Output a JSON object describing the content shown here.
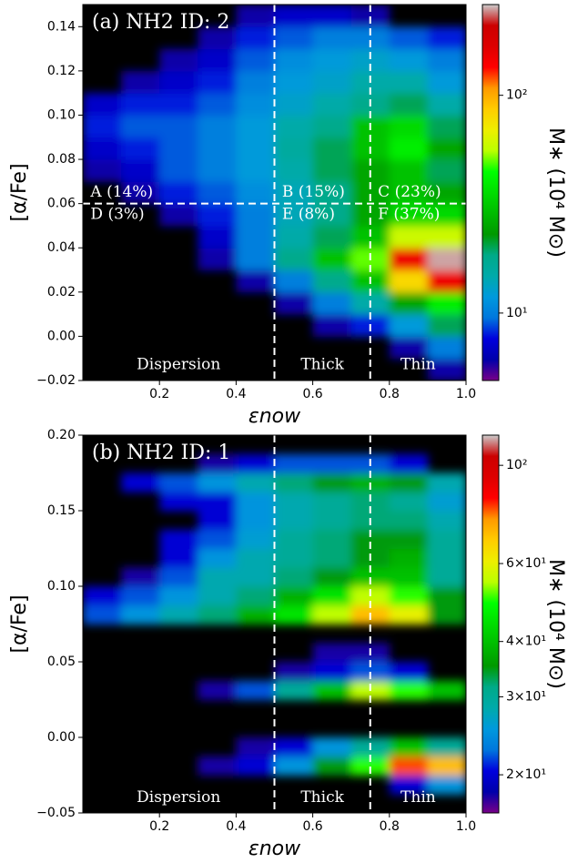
{
  "chart_data": [
    {
      "type": "heatmap",
      "title": "(a) NH2 ID: 2",
      "xlabel": "εnow",
      "ylabel": "[α/Fe]",
      "colorbar_label": "M∗ (10⁴ M⊙)",
      "background": "#000000",
      "log_color": true,
      "colormap": [
        "#780088",
        "#0000aa",
        "#0000dd",
        "#0077dd",
        "#0099dd",
        "#00aaaa",
        "#00aa88",
        "#009900",
        "#00bb00",
        "#00dd00",
        "#00ff00",
        "#bbff00",
        "#eeee00",
        "#ffcc00",
        "#ff9900",
        "#ff0000",
        "#dd0000",
        "#cc0000",
        "#cccccc"
      ],
      "clim": [
        4.9,
        261
      ],
      "cticks": [
        {
          "value": 10,
          "label": "10¹"
        },
        {
          "value": 100,
          "label": "10²"
        }
      ],
      "xlim": [
        0,
        1
      ],
      "ylim": [
        -0.02,
        0.15
      ],
      "xticks": [
        0.2,
        0.4,
        0.6,
        0.8,
        {
          "value": 1,
          "label": "1.0"
        }
      ],
      "yticks": [
        {
          "value": -0.02,
          "label": "−0.02"
        },
        {
          "value": 0,
          "label": "0.00"
        },
        0.02,
        0.04,
        0.06,
        0.08,
        {
          "value": 0.1,
          "label": "0.10"
        },
        0.12,
        0.14
      ],
      "xbins": [
        0,
        0.1,
        0.2,
        0.3,
        0.4,
        0.5,
        0.6,
        0.7,
        0.8,
        0.9,
        1.0
      ],
      "ybins": [
        -0.02,
        -0.01,
        0,
        0.01,
        0.02,
        0.03,
        0.04,
        0.05,
        0.06,
        0.07,
        0.08,
        0.09,
        0.1,
        0.11,
        0.12,
        0.13,
        0.14,
        0.15
      ],
      "z": [
        [
          null,
          null,
          null,
          null,
          null,
          null,
          null,
          null,
          null,
          6
        ],
        [
          null,
          null,
          null,
          null,
          null,
          null,
          null,
          null,
          6,
          10
        ],
        [
          null,
          null,
          null,
          null,
          null,
          null,
          6,
          8,
          12,
          20
        ],
        [
          null,
          null,
          null,
          null,
          null,
          6,
          10,
          15,
          25,
          40
        ],
        [
          null,
          null,
          null,
          null,
          6,
          10,
          18,
          30,
          80,
          150
        ],
        [
          null,
          null,
          null,
          6,
          10,
          18,
          30,
          50,
          150,
          250
        ],
        [
          null,
          null,
          null,
          7,
          10,
          15,
          20,
          30,
          60,
          60
        ],
        [
          null,
          null,
          6,
          8,
          10,
          14,
          18,
          25,
          35,
          35
        ],
        [
          null,
          6,
          8,
          9,
          11,
          14,
          18,
          25,
          30,
          25
        ],
        [
          6,
          7,
          9,
          10,
          12,
          15,
          20,
          25,
          30,
          20
        ],
        [
          7,
          8,
          9,
          10,
          12,
          16,
          20,
          30,
          40,
          25
        ],
        [
          8,
          9,
          9,
          10,
          12,
          15,
          18,
          30,
          35,
          20
        ],
        [
          7,
          8,
          8,
          9,
          11,
          13,
          15,
          18,
          20,
          15
        ],
        [
          null,
          6,
          7,
          8,
          10,
          12,
          13,
          15,
          15,
          12
        ],
        [
          null,
          null,
          6,
          7,
          9,
          11,
          12,
          13,
          12,
          10
        ],
        [
          null,
          null,
          null,
          6,
          8,
          9,
          10,
          10,
          9,
          8
        ],
        [
          null,
          null,
          null,
          null,
          6,
          7,
          7,
          6,
          null,
          null
        ]
      ],
      "vlines": [
        0.5,
        0.75
      ],
      "hlines": [
        0.06
      ],
      "annotations": [
        {
          "text": "A (14%)",
          "x": 0.02,
          "y": 0.065
        },
        {
          "text": "B (15%)",
          "x": 0.52,
          "y": 0.065
        },
        {
          "text": "C (23%)",
          "x": 0.77,
          "y": 0.065
        },
        {
          "text": "D (3%)",
          "x": 0.02,
          "y": 0.055
        },
        {
          "text": "E (8%)",
          "x": 0.52,
          "y": 0.055
        },
        {
          "text": "F (37%)",
          "x": 0.77,
          "y": 0.055
        },
        {
          "text": "Dispersion",
          "x": 0.25,
          "y": -0.013
        },
        {
          "text": "Thick",
          "x": 0.625,
          "y": -0.013
        },
        {
          "text": "Thin",
          "x": 0.875,
          "y": -0.013
        }
      ]
    },
    {
      "type": "heatmap",
      "title": "(b) NH2 ID: 1",
      "xlabel": "εnow",
      "ylabel": "[α/Fe]",
      "colorbar_label": "M∗ (10⁴ M⊙)",
      "background": "#000000",
      "log_color": true,
      "colormap": [
        "#780088",
        "#0000aa",
        "#0000dd",
        "#0077dd",
        "#0099dd",
        "#00aaaa",
        "#00aa88",
        "#009900",
        "#00bb00",
        "#00dd00",
        "#00ff00",
        "#bbff00",
        "#eeee00",
        "#ffcc00",
        "#ff9900",
        "#ff0000",
        "#dd0000",
        "#cc0000",
        "#cccccc"
      ],
      "clim": [
        16.4,
        117
      ],
      "cticks": [
        {
          "value": 20,
          "label": "2×10¹"
        },
        {
          "value": 30,
          "label": "3×10¹"
        },
        {
          "value": 40,
          "label": "4×10¹"
        },
        {
          "value": 60,
          "label": "6×10¹"
        },
        {
          "value": 100,
          "label": "10²"
        }
      ],
      "xlim": [
        0,
        1
      ],
      "ylim": [
        -0.05,
        0.2
      ],
      "xticks": [
        0.2,
        0.4,
        0.6,
        0.8,
        {
          "value": 1,
          "label": "1.0"
        }
      ],
      "yticks": [
        {
          "value": -0.05,
          "label": "−0.05"
        },
        {
          "value": 0,
          "label": "0.00"
        },
        0.05,
        {
          "value": 0.1,
          "label": "0.10"
        },
        0.15,
        {
          "value": 0.2,
          "label": "0.20"
        }
      ],
      "xbins": [
        0,
        0.1,
        0.2,
        0.3,
        0.4,
        0.5,
        0.6,
        0.7,
        0.8,
        0.9,
        1.0
      ],
      "ybins": [
        -0.05,
        -0.0375,
        -0.025,
        -0.0125,
        0,
        0.0125,
        0.025,
        0.0375,
        0.05,
        0.0625,
        0.075,
        0.0875,
        0.1,
        0.1125,
        0.125,
        0.1375,
        0.15,
        0.1625,
        0.175,
        0.1875,
        0.2
      ],
      "z": [
        [
          null,
          null,
          null,
          null,
          null,
          null,
          null,
          null,
          null,
          null
        ],
        [
          null,
          null,
          null,
          null,
          null,
          null,
          null,
          null,
          20,
          25
        ],
        [
          null,
          null,
          null,
          18,
          20,
          25,
          35,
          50,
          80,
          70
        ],
        [
          null,
          null,
          null,
          null,
          18,
          20,
          25,
          30,
          40,
          30
        ],
        [
          null,
          null,
          null,
          null,
          null,
          null,
          null,
          null,
          null,
          null
        ],
        [
          null,
          null,
          null,
          null,
          null,
          null,
          null,
          null,
          null,
          null
        ],
        [
          null,
          null,
          null,
          18,
          22,
          30,
          40,
          55,
          50,
          40
        ],
        [
          null,
          null,
          null,
          null,
          null,
          18,
          20,
          22,
          20,
          null
        ],
        [
          null,
          null,
          null,
          null,
          null,
          null,
          18,
          18,
          null,
          null
        ],
        [
          null,
          null,
          null,
          null,
          null,
          null,
          null,
          null,
          null,
          null
        ],
        [
          22,
          25,
          28,
          32,
          38,
          45,
          55,
          70,
          60,
          35
        ],
        [
          20,
          22,
          25,
          28,
          32,
          38,
          45,
          55,
          50,
          35
        ],
        [
          null,
          18,
          22,
          28,
          28,
          32,
          35,
          40,
          40,
          30
        ],
        [
          null,
          null,
          20,
          25,
          28,
          30,
          32,
          35,
          38,
          30
        ],
        [
          null,
          null,
          20,
          22,
          26,
          30,
          32,
          35,
          35,
          30
        ],
        [
          null,
          null,
          null,
          20,
          25,
          28,
          30,
          32,
          32,
          28
        ],
        [
          null,
          null,
          20,
          20,
          25,
          28,
          30,
          32,
          30,
          26
        ],
        [
          null,
          20,
          22,
          25,
          28,
          32,
          35,
          38,
          35,
          28
        ],
        [
          null,
          null,
          null,
          18,
          20,
          22,
          22,
          22,
          20,
          null
        ],
        [
          null,
          null,
          null,
          null,
          null,
          null,
          null,
          null,
          null,
          null
        ]
      ],
      "vlines": [
        0.5,
        0.75
      ],
      "annotations": [
        {
          "text": "Dispersion",
          "x": 0.25,
          "y": -0.04
        },
        {
          "text": "Thick",
          "x": 0.625,
          "y": -0.04
        },
        {
          "text": "Thin",
          "x": 0.875,
          "y": -0.04
        }
      ]
    }
  ]
}
